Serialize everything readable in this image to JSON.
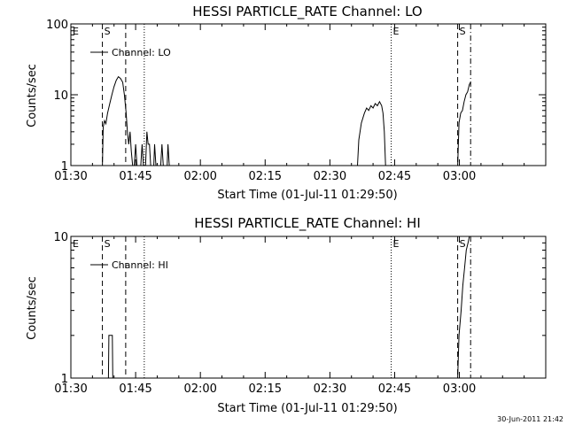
{
  "footer": {
    "timestamp": "30-Jun-2011 21:42"
  },
  "chart_data": [
    {
      "type": "line",
      "title": "HESSI PARTICLE_RATE Channel: LO",
      "xlabel": "Start Time (01-Jul-11 01:29:50)",
      "ylabel": "Counts/sec",
      "yscale": "log",
      "xlim_min": [
        0,
        110
      ],
      "ylim": [
        1,
        100
      ],
      "x_ticks": [
        {
          "label": "01:30",
          "min": 0
        },
        {
          "label": "01:45",
          "min": 15
        },
        {
          "label": "02:00",
          "min": 30
        },
        {
          "label": "02:15",
          "min": 45
        },
        {
          "label": "02:30",
          "min": 60
        },
        {
          "label": "02:45",
          "min": 75
        },
        {
          "label": "03:00",
          "min": 90
        }
      ],
      "y_ticks": [
        {
          "label": "1",
          "value": 1
        },
        {
          "label": "10",
          "value": 10
        },
        {
          "label": "100",
          "value": 100
        }
      ],
      "legend": {
        "label": "Channel: LO",
        "position": "top-left"
      },
      "markers": [
        {
          "label": "E",
          "min": 0,
          "style": "dotted",
          "line": false
        },
        {
          "label": "S",
          "min": 7.3,
          "style": "dashed",
          "line": true
        },
        {
          "label": "",
          "min": 12.7,
          "style": "dashed",
          "line": true
        },
        {
          "label": "",
          "min": 17.0,
          "style": "dotted",
          "line": true
        },
        {
          "label": "E",
          "min": 74.2,
          "style": "dotted",
          "line": true
        },
        {
          "label": "S",
          "min": 89.6,
          "style": "dashed",
          "line": true
        },
        {
          "label": "",
          "min": 92.6,
          "style": "dashdot",
          "line": true
        }
      ],
      "segments": [
        [
          [
            7.3,
            1
          ],
          [
            7.5,
            3.5
          ],
          [
            7.8,
            4.3
          ],
          [
            8.1,
            3.9
          ],
          [
            8.5,
            5.5
          ],
          [
            9,
            7.5
          ],
          [
            9.5,
            10
          ],
          [
            10,
            13
          ],
          [
            10.5,
            16
          ],
          [
            11,
            18
          ],
          [
            11.5,
            17
          ],
          [
            12,
            15
          ],
          [
            12.4,
            10
          ],
          [
            12.8,
            5.5
          ],
          [
            13.1,
            3
          ],
          [
            13.4,
            2
          ],
          [
            13.7,
            3
          ],
          [
            14,
            1.6
          ],
          [
            14.3,
            1
          ]
        ],
        [
          [
            14.7,
            1
          ],
          [
            15,
            2
          ],
          [
            15.3,
            1
          ]
        ],
        [
          [
            16.2,
            1
          ],
          [
            16.5,
            2
          ],
          [
            16.8,
            1
          ]
        ],
        [
          [
            17.3,
            1
          ],
          [
            17.6,
            3
          ],
          [
            17.9,
            2
          ],
          [
            18.2,
            2
          ],
          [
            18.5,
            1
          ]
        ],
        [
          [
            19.2,
            1
          ],
          [
            19.4,
            2
          ],
          [
            19.7,
            1
          ]
        ],
        [
          [
            20.8,
            1
          ],
          [
            21.1,
            2
          ],
          [
            21.4,
            1
          ]
        ],
        [
          [
            22.3,
            1
          ],
          [
            22.5,
            2
          ],
          [
            22.8,
            1
          ]
        ],
        [
          [
            66.4,
            1
          ],
          [
            66.7,
            2.3
          ],
          [
            67.3,
            4
          ],
          [
            68,
            5.5
          ],
          [
            68.5,
            6.5
          ],
          [
            69,
            6
          ],
          [
            69.5,
            7
          ],
          [
            70,
            6.5
          ],
          [
            70.5,
            7.5
          ],
          [
            71,
            7
          ],
          [
            71.5,
            8
          ],
          [
            72,
            7
          ],
          [
            72.3,
            5.5
          ],
          [
            72.6,
            3
          ],
          [
            72.9,
            1
          ]
        ],
        [
          [
            89.6,
            1
          ],
          [
            89.9,
            4
          ],
          [
            90.3,
            5.5
          ],
          [
            90.7,
            6
          ],
          [
            91.1,
            8
          ],
          [
            91.5,
            10
          ],
          [
            91.9,
            11
          ],
          [
            92.3,
            14
          ],
          [
            92.6,
            15
          ]
        ]
      ]
    },
    {
      "type": "line",
      "title": "HESSI PARTICLE_RATE Channel: HI",
      "xlabel": "Start Time (01-Jul-11 01:29:50)",
      "ylabel": "Counts/sec",
      "yscale": "log",
      "xlim_min": [
        0,
        110
      ],
      "ylim": [
        1,
        10
      ],
      "x_ticks": [
        {
          "label": "01:30",
          "min": 0
        },
        {
          "label": "01:45",
          "min": 15
        },
        {
          "label": "02:00",
          "min": 30
        },
        {
          "label": "02:15",
          "min": 45
        },
        {
          "label": "02:30",
          "min": 60
        },
        {
          "label": "02:45",
          "min": 75
        },
        {
          "label": "03:00",
          "min": 90
        }
      ],
      "y_ticks": [
        {
          "label": "1",
          "value": 1
        },
        {
          "label": "10",
          "value": 10
        }
      ],
      "legend": {
        "label": "Channel: HI",
        "position": "top-left"
      },
      "markers": [
        {
          "label": "E",
          "min": 0,
          "style": "dotted",
          "line": false
        },
        {
          "label": "S",
          "min": 7.3,
          "style": "dashed",
          "line": true
        },
        {
          "label": "",
          "min": 12.7,
          "style": "dashed",
          "line": true
        },
        {
          "label": "",
          "min": 17.0,
          "style": "dotted",
          "line": true
        },
        {
          "label": "E",
          "min": 74.2,
          "style": "dotted",
          "line": true
        },
        {
          "label": "S",
          "min": 89.6,
          "style": "dashed",
          "line": true
        },
        {
          "label": "",
          "min": 92.6,
          "style": "dashdot",
          "line": true
        }
      ],
      "segments": [
        [
          [
            8.7,
            1
          ],
          [
            8.8,
            2
          ],
          [
            9.6,
            2
          ],
          [
            9.7,
            1
          ]
        ],
        [
          [
            89.6,
            1
          ],
          [
            89.9,
            2
          ],
          [
            90.4,
            3
          ],
          [
            90.8,
            4.5
          ],
          [
            91.2,
            6
          ],
          [
            91.6,
            8
          ],
          [
            92,
            9
          ],
          [
            92.3,
            10
          ]
        ]
      ]
    }
  ]
}
